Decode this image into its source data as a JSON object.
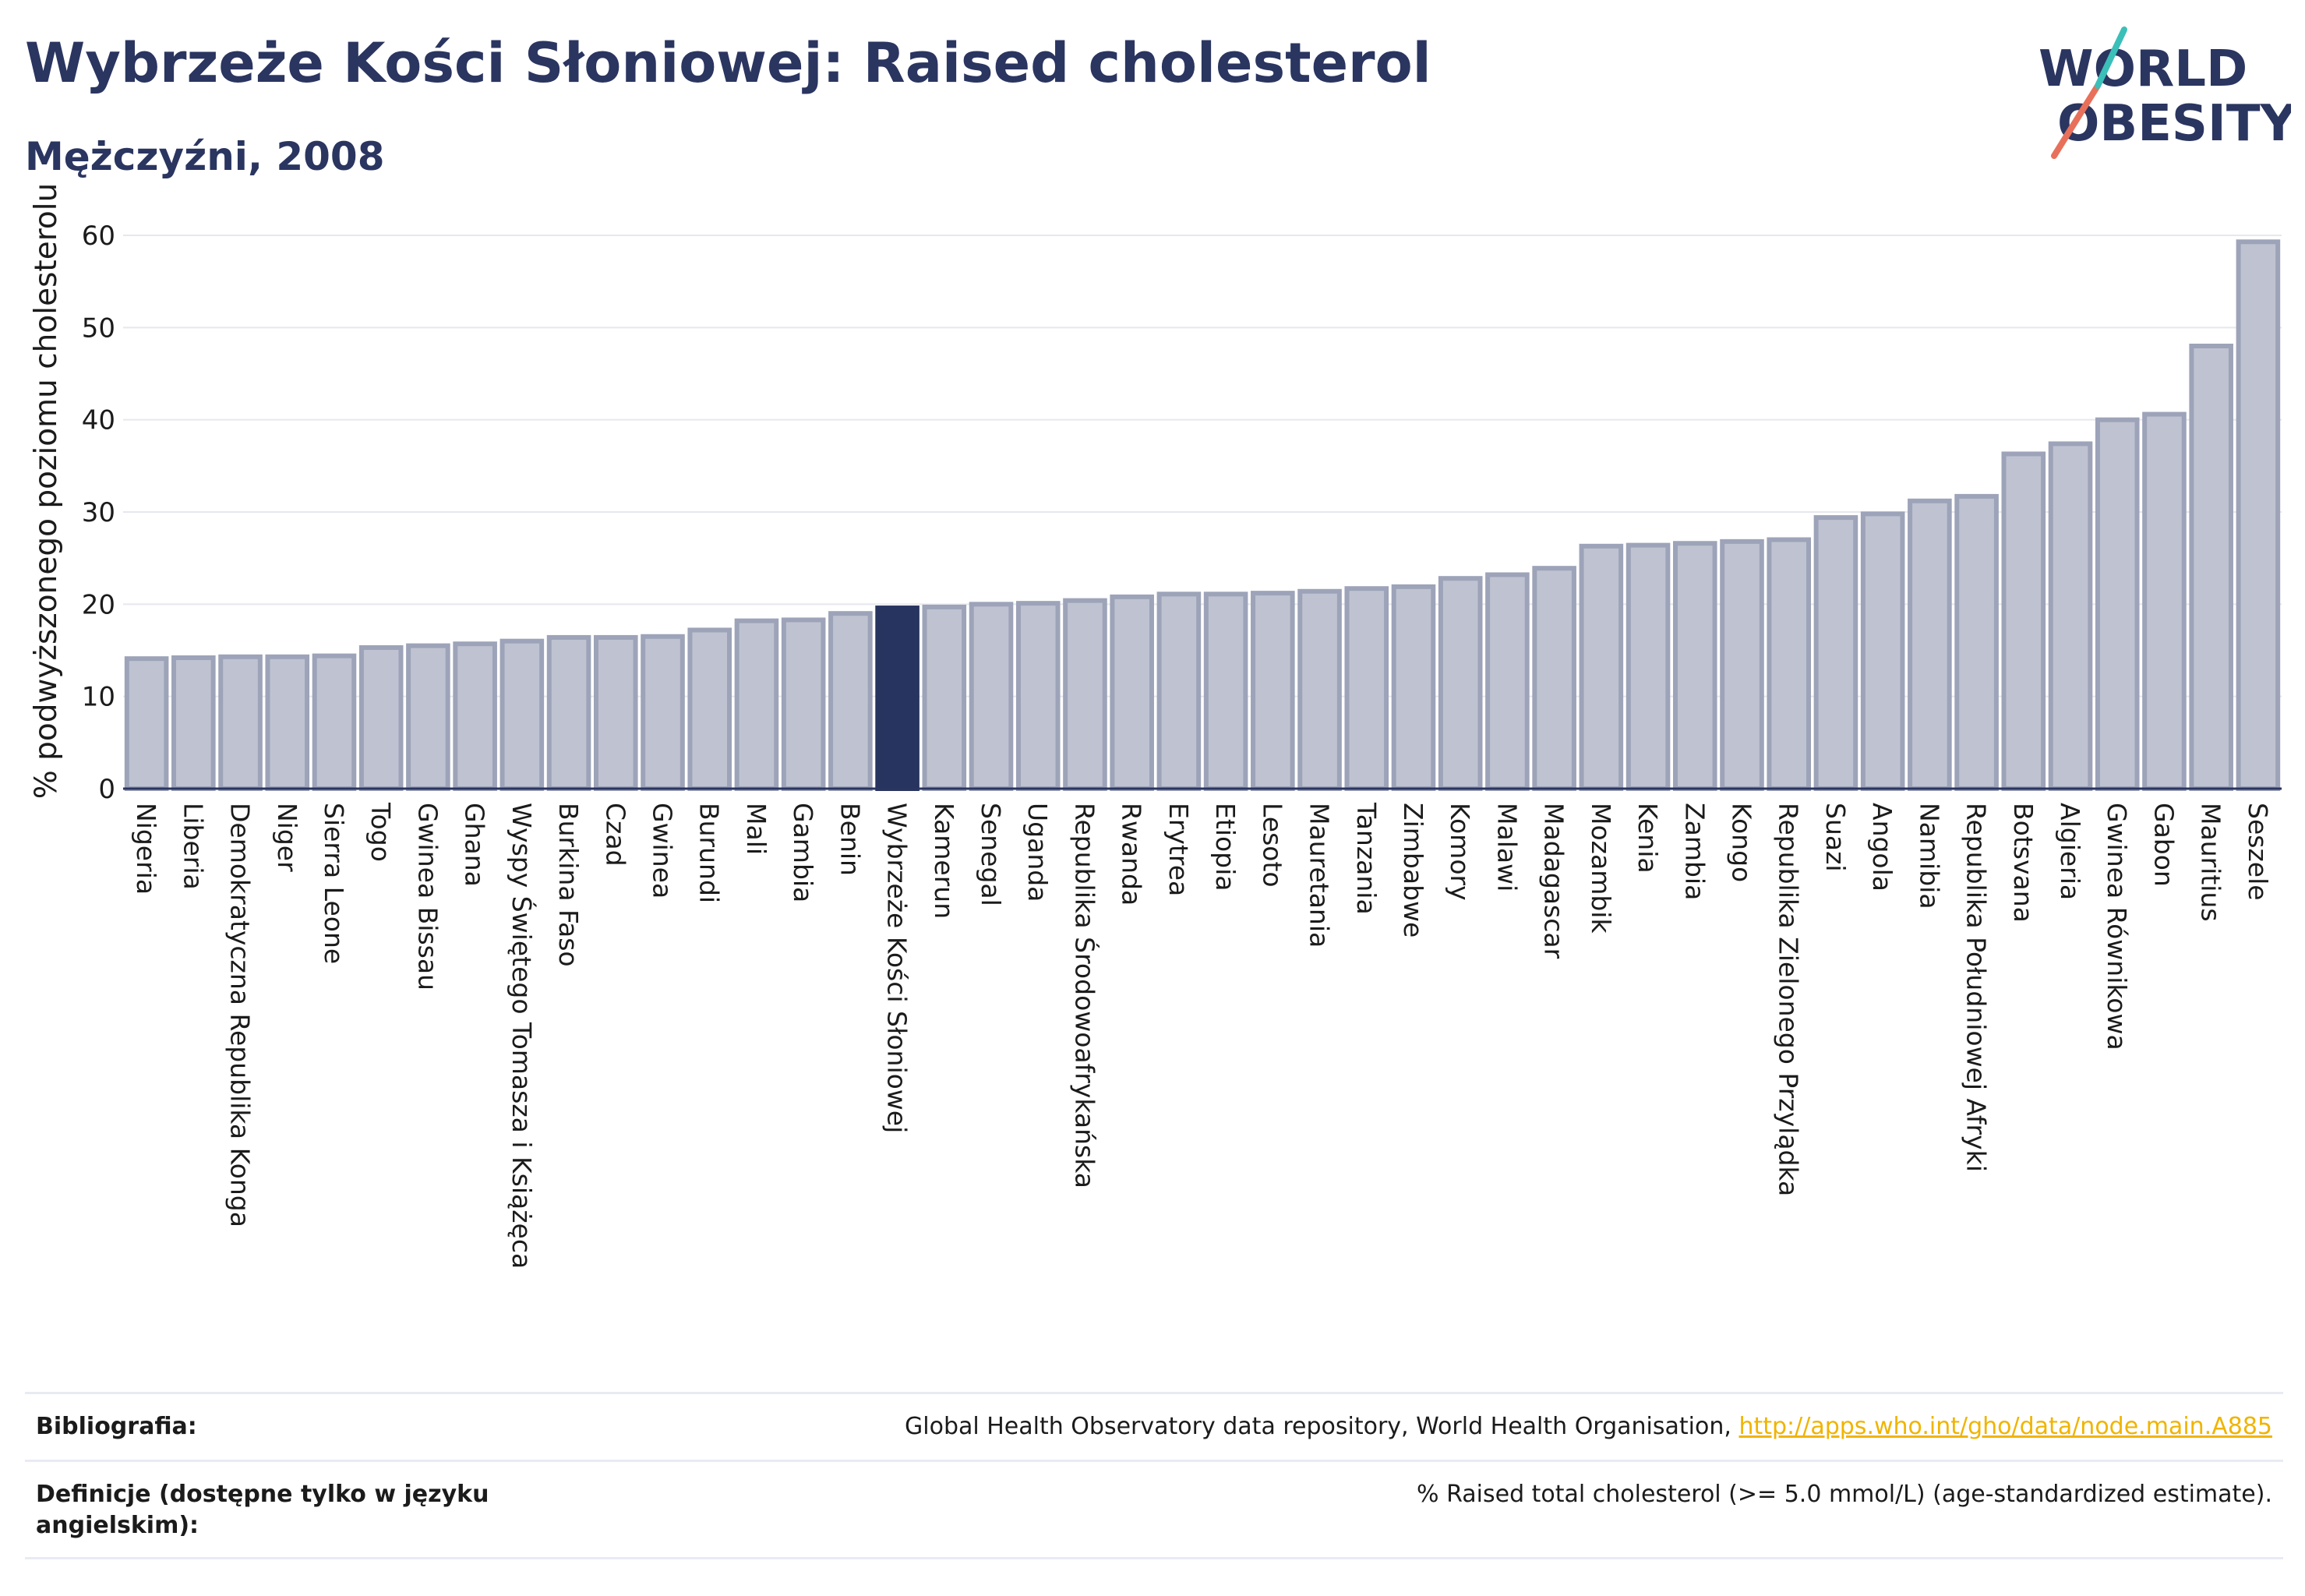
{
  "header": {
    "title": "Wybrzeże Kości Słoniowej: Raised cholesterol",
    "subtitle": "Mężczyźni, 2008"
  },
  "logo": {
    "line1": "WORLD",
    "line2": "OBESITY"
  },
  "colors": {
    "highlight": "#27345f",
    "bar_fill": "#bfc3d1",
    "bar_stroke": "#9da3b8",
    "grid": "#e6e8ee"
  },
  "chart_data": {
    "type": "bar",
    "ylabel": "% podwyższonego poziomu cholesterolu",
    "ylim": [
      0,
      60
    ],
    "yticks": [
      0,
      10,
      20,
      30,
      40,
      50,
      60
    ],
    "grid": true,
    "highlight": "Wybrzeże Kości Słoniowej",
    "categories": [
      "Nigeria",
      "Liberia",
      "Demokratyczna Republika Konga",
      "Niger",
      "Sierra Leone",
      "Togo",
      "Gwinea Bissau",
      "Ghana",
      "Wyspy Świętego Tomasza i Książęca",
      "Burkina Faso",
      "Czad",
      "Gwinea",
      "Burundi",
      "Mali",
      "Gambia",
      "Benin",
      "Wybrzeże Kości Słoniowej",
      "Kamerun",
      "Senegal",
      "Uganda",
      "Republika Środowoafrykańska",
      "Rwanda",
      "Erytrea",
      "Etiopia",
      "Lesoto",
      "Mauretania",
      "Tanzania",
      "Zimbabwe",
      "Komory",
      "Malawi",
      "Madagascar",
      "Mozambik",
      "Kenia",
      "Zambia",
      "Kongo",
      "Republika Zielonego Przylądka",
      "Suazi",
      "Angola",
      "Namibia",
      "Republika Południowej Afryki",
      "Botsvana",
      "Algieria",
      "Gwinea Równikowa",
      "Gabon",
      "Mauritius",
      "Seszele"
    ],
    "values": [
      14.1,
      14.2,
      14.3,
      14.3,
      14.4,
      15.3,
      15.5,
      15.7,
      16.0,
      16.4,
      16.4,
      16.5,
      17.2,
      18.2,
      18.3,
      19.0,
      19.6,
      19.7,
      20.0,
      20.1,
      20.4,
      20.8,
      21.1,
      21.1,
      21.2,
      21.4,
      21.7,
      21.9,
      22.8,
      23.2,
      23.9,
      26.3,
      26.4,
      26.6,
      26.8,
      27.0,
      29.4,
      29.8,
      31.2,
      31.7,
      36.3,
      37.4,
      40.0,
      40.6,
      48.0,
      59.3
    ]
  },
  "footer": {
    "sources_label": "Bibliografia:",
    "sources_text": "Global Health Observatory data repository, World Health Organisation, ",
    "sources_link": "http://apps.who.int/gho/data/node.main.A885",
    "definition_label": "Definicje (dostępne tylko w języku angielskim):",
    "definition_text": "% Raised total cholesterol (>= 5.0 mmol/L) (age-standardized estimate)."
  }
}
